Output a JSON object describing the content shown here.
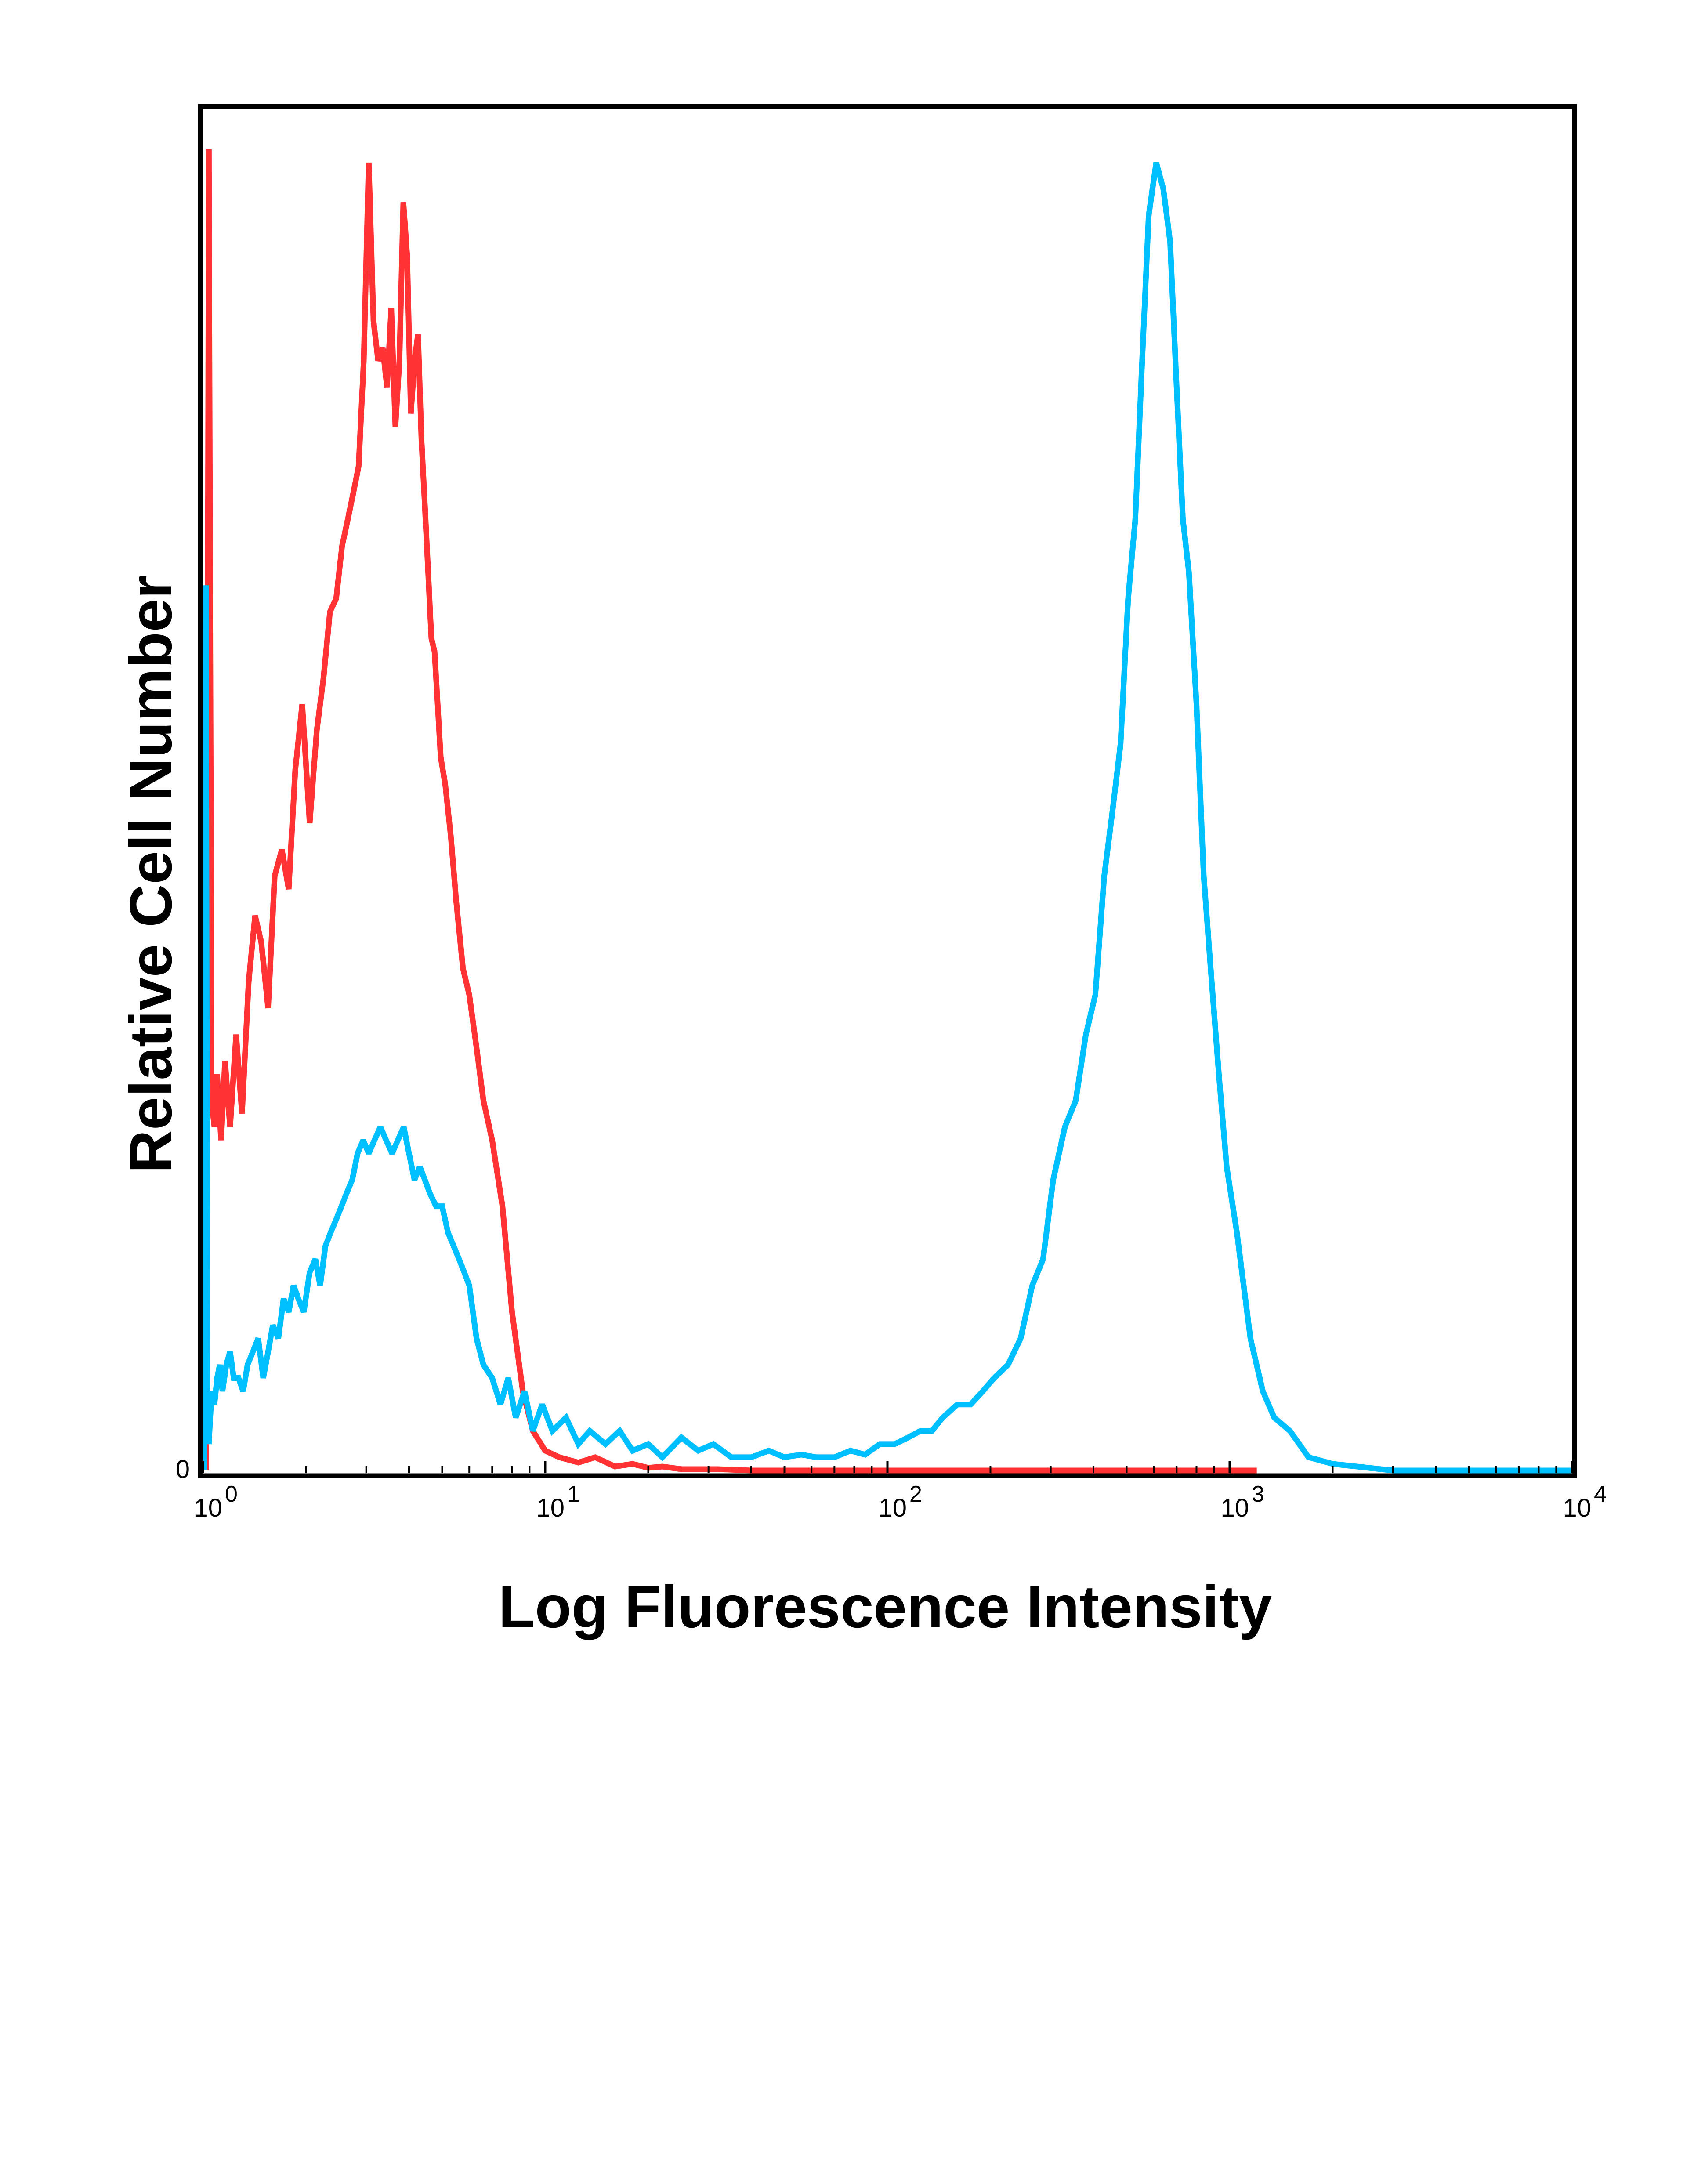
{
  "chart_data": {
    "type": "line",
    "xlabel": "Log Fluorescence Intensity",
    "ylabel": "Relative Cell Number",
    "x_scale": "log",
    "xlim": [
      1,
      10000
    ],
    "ylim": [
      0,
      100
    ],
    "y_tick_label": "0",
    "x_ticks": [
      {
        "base": "10",
        "exp": "0",
        "value": 1
      },
      {
        "base": "10",
        "exp": "1",
        "value": 10
      },
      {
        "base": "10",
        "exp": "2",
        "value": 100
      },
      {
        "base": "10",
        "exp": "3",
        "value": 1000
      },
      {
        "base": "10",
        "exp": "4",
        "value": 10000
      }
    ],
    "grid": false,
    "legend": "none",
    "series": [
      {
        "color": "#ff3333",
        "x": [
          1.02,
          1.04,
          1.06,
          1.08,
          1.1,
          1.13,
          1.16,
          1.2,
          1.25,
          1.3,
          1.36,
          1.42,
          1.48,
          1.55,
          1.62,
          1.7,
          1.78,
          1.86,
          1.95,
          2.05,
          2.15,
          2.25,
          2.35,
          2.45,
          2.55,
          2.65,
          2.75,
          2.85,
          2.95,
          3.05,
          3.15,
          3.25,
          3.35,
          3.45,
          3.55,
          3.65,
          3.75,
          3.85,
          3.95,
          4.05,
          4.15,
          4.25,
          4.35,
          4.45,
          4.55,
          4.65,
          4.75,
          4.85,
          4.95,
          5.1,
          5.3,
          5.5,
          5.75,
          6.0,
          6.3,
          6.6,
          7.0,
          7.5,
          8.0,
          8.6,
          9.2,
          10,
          11,
          12.5,
          14,
          16,
          18,
          20,
          22,
          25,
          28,
          32,
          40,
          60,
          100,
          200,
          400,
          800,
          1200
        ],
        "y": [
          0,
          100,
          28,
          26,
          30,
          25,
          31,
          26,
          33,
          27,
          37,
          42,
          40,
          35,
          45,
          47,
          44,
          53,
          58,
          49,
          56,
          60,
          65,
          66,
          70,
          72,
          74,
          76,
          84,
          99,
          87,
          84,
          85,
          82,
          88,
          79,
          84,
          96,
          92,
          80,
          84,
          86,
          78,
          73,
          68,
          63,
          62,
          58,
          54,
          52,
          48,
          43,
          38,
          36,
          32,
          28,
          25,
          20,
          12,
          6,
          3,
          1.5,
          1,
          0.6,
          1,
          0.3,
          0.5,
          0.2,
          0.3,
          0.1,
          0.1,
          0.1,
          0,
          0,
          0,
          0,
          0,
          0,
          0
        ]
      },
      {
        "color": "#00bfff",
        "x": [
          1.01,
          1.02,
          1.03,
          1.04,
          1.06,
          1.08,
          1.1,
          1.12,
          1.14,
          1.17,
          1.2,
          1.23,
          1.27,
          1.31,
          1.35,
          1.4,
          1.45,
          1.5,
          1.55,
          1.6,
          1.66,
          1.72,
          1.78,
          1.84,
          1.9,
          1.97,
          2.05,
          2.13,
          2.2,
          2.28,
          2.36,
          2.45,
          2.54,
          2.63,
          2.73,
          2.83,
          2.94,
          3.05,
          3.17,
          3.3,
          3.43,
          3.57,
          3.71,
          3.86,
          4.0,
          4.15,
          4.3,
          4.45,
          4.6,
          4.8,
          5.0,
          5.2,
          5.4,
          5.6,
          5.8,
          6.0,
          6.3,
          6.6,
          7.0,
          7.4,
          7.8,
          8.2,
          8.7,
          9.2,
          9.8,
          10.5,
          11.5,
          12.5,
          13.5,
          15,
          16.5,
          18,
          20,
          22,
          25,
          28,
          31,
          35,
          40,
          45,
          50,
          56,
          62,
          70,
          78,
          86,
          95,
          105,
          115,
          125,
          135,
          145,
          160,
          175,
          190,
          205,
          225,
          245,
          265,
          285,
          305,
          330,
          355,
          380,
          405,
          430,
          455,
          480,
          505,
          530,
          555,
          580,
          610,
          640,
          670,
          700,
          730,
          760,
          800,
          840,
          880,
          930,
          980,
          1050,
          1150,
          1250,
          1350,
          1500,
          1700,
          2000,
          3000,
          5000,
          10000
        ],
        "y": [
          0,
          67,
          5,
          2,
          6,
          5,
          7,
          8,
          6,
          8,
          9,
          7,
          7,
          6,
          8,
          9,
          10,
          7,
          9,
          11,
          10,
          13,
          12,
          14,
          13,
          12,
          15,
          16,
          14,
          17,
          18,
          19,
          20,
          21,
          22,
          24,
          25,
          24,
          25,
          26,
          25,
          24,
          25,
          26,
          24,
          22,
          23,
          22,
          21,
          20,
          20,
          18,
          17,
          16,
          15,
          14,
          10,
          8,
          7,
          5,
          7,
          4,
          6,
          3,
          5,
          3,
          4,
          2,
          3,
          2,
          3,
          1.5,
          2,
          1,
          2.5,
          1.5,
          2,
          1,
          1,
          1.5,
          1,
          1.2,
          1,
          1,
          1.5,
          1.2,
          2,
          2,
          2.5,
          3,
          3,
          4,
          5,
          5,
          6,
          7,
          8,
          10,
          14,
          16,
          22,
          26,
          28,
          33,
          36,
          45,
          50,
          55,
          66,
          72,
          84,
          95,
          99,
          97,
          93,
          82,
          72,
          68,
          58,
          45,
          38,
          30,
          23,
          18,
          10,
          6,
          4,
          3,
          1,
          0.5,
          0,
          0,
          0
        ]
      }
    ]
  }
}
